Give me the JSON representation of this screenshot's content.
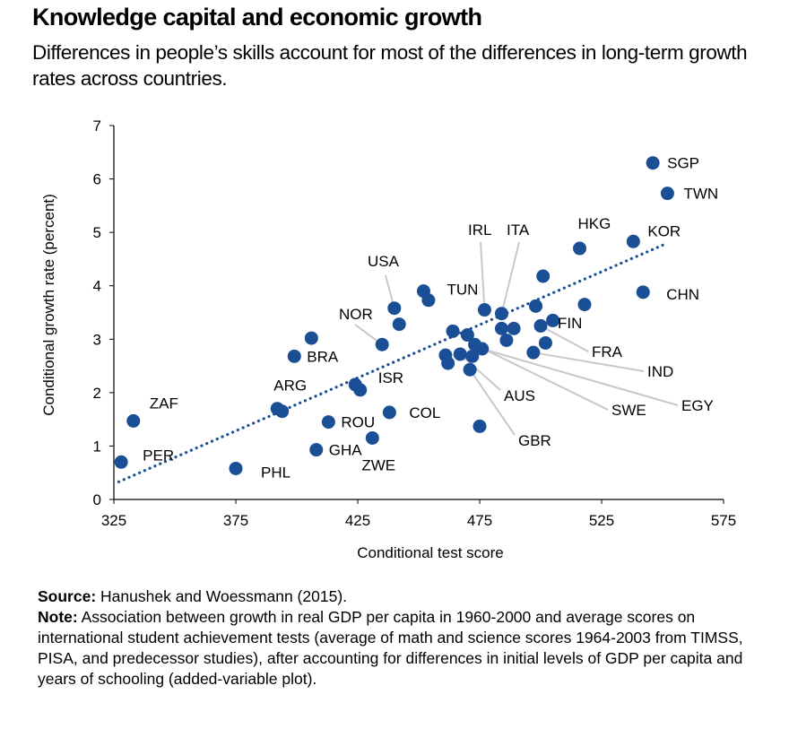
{
  "header": {
    "title": "Knowledge capital and economic growth",
    "subtitle": "Differences in people’s skills account for most of the differences in long-term growth rates across countries."
  },
  "footer": {
    "source_label": "Source:",
    "source_text": "Hanushek and Woessmann (2015).",
    "note_label": "Note:",
    "note_text": "Association between growth in real GDP per capita in 1960-2000 and average scores on international student achievement tests (average of math and science scores 1964-2003 from TIMSS, PISA, and predecessor studies), after accounting for differences in initial levels of GDP per capita and years of schooling (added-variable plot)."
  },
  "colors": {
    "marker": "#1a4f96",
    "trendline": "#1a4f96",
    "axis": "#000000",
    "leader": "#c8c8c8"
  },
  "chart_data": {
    "type": "scatter",
    "xlabel": "Conditional test score",
    "ylabel": "Conditional growth rate (percent)",
    "xlim": [
      325,
      575
    ],
    "ylim": [
      0,
      7
    ],
    "xticks": [
      "325",
      "375",
      "425",
      "475",
      "525",
      "575"
    ],
    "yticks": [
      "0",
      "1",
      "2",
      "3",
      "4",
      "5",
      "6",
      "7"
    ],
    "grid": false,
    "legend": "none",
    "trendline": {
      "style": "dotted",
      "x": [
        327,
        552
      ],
      "y": [
        0.33,
        4.8
      ]
    },
    "points": [
      {
        "label": "SGP",
        "x": 546,
        "y": 6.3
      },
      {
        "label": "TWN",
        "x": 552,
        "y": 5.73
      },
      {
        "label": "KOR",
        "x": 538,
        "y": 4.83
      },
      {
        "label": "HKG",
        "x": 516,
        "y": 4.7
      },
      {
        "label": "CHN",
        "x": 542,
        "y": 3.88
      },
      {
        "label": "",
        "x": 501,
        "y": 4.18
      },
      {
        "label": "",
        "x": 518,
        "y": 3.65
      },
      {
        "label": "",
        "x": 498,
        "y": 3.62
      },
      {
        "label": "FIN",
        "x": 505,
        "y": 3.35
      },
      {
        "label": "FRA",
        "x": 500,
        "y": 3.25
      },
      {
        "label": "",
        "x": 502,
        "y": 2.93
      },
      {
        "label": "IND",
        "x": 497,
        "y": 2.75
      },
      {
        "label": "ITA",
        "x": 484,
        "y": 3.48
      },
      {
        "label": "IRL",
        "x": 477,
        "y": 3.55
      },
      {
        "label": "",
        "x": 489,
        "y": 3.2
      },
      {
        "label": "",
        "x": 484,
        "y": 3.2
      },
      {
        "label": "",
        "x": 486,
        "y": 2.98
      },
      {
        "label": "",
        "x": 464,
        "y": 3.15
      },
      {
        "label": "",
        "x": 470,
        "y": 3.08
      },
      {
        "label": "SWE",
        "x": 473,
        "y": 2.9
      },
      {
        "label": "EGY",
        "x": 476,
        "y": 2.82
      },
      {
        "label": "AUS",
        "x": 467,
        "y": 2.72
      },
      {
        "label": "",
        "x": 472,
        "y": 2.68
      },
      {
        "label": "GBR",
        "x": 471,
        "y": 2.43
      },
      {
        "label": "",
        "x": 461,
        "y": 2.7
      },
      {
        "label": "",
        "x": 462,
        "y": 2.55
      },
      {
        "label": "TUN",
        "x": 452,
        "y": 3.9
      },
      {
        "label": "",
        "x": 454,
        "y": 3.73
      },
      {
        "label": "USA",
        "x": 440,
        "y": 3.58
      },
      {
        "label": "",
        "x": 442,
        "y": 3.28
      },
      {
        "label": "NOR",
        "x": 435,
        "y": 2.9
      },
      {
        "label": "ISR",
        "x": 426,
        "y": 2.05
      },
      {
        "label": "",
        "x": 424,
        "y": 2.15
      },
      {
        "label": "COL",
        "x": 438,
        "y": 1.63
      },
      {
        "label": "",
        "x": 475,
        "y": 1.37
      },
      {
        "label": "ROU",
        "x": 413,
        "y": 1.45
      },
      {
        "label": "ZWE",
        "x": 431,
        "y": 1.15
      },
      {
        "label": "GHA",
        "x": 408,
        "y": 0.93
      },
      {
        "label": "BRA",
        "x": 399,
        "y": 2.68
      },
      {
        "label": "",
        "x": 406,
        "y": 3.02
      },
      {
        "label": "ARG",
        "x": 392,
        "y": 1.7
      },
      {
        "label": "",
        "x": 394,
        "y": 1.65
      },
      {
        "label": "ZAF",
        "x": 333,
        "y": 1.47
      },
      {
        "label": "PER",
        "x": 328,
        "y": 0.7
      },
      {
        "label": "PHL",
        "x": 375,
        "y": 0.58
      }
    ]
  }
}
